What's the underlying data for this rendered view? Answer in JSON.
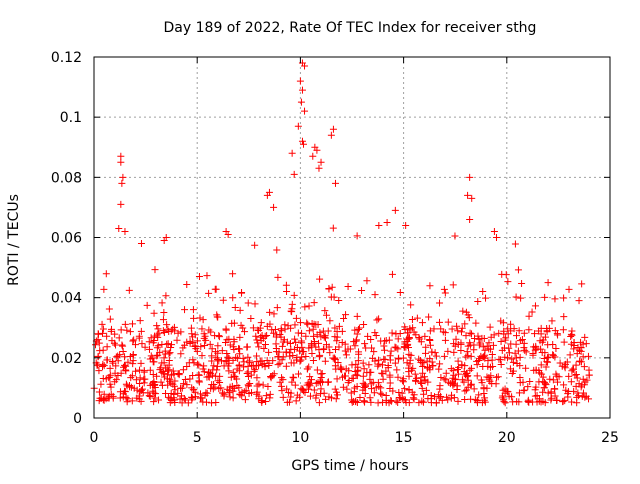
{
  "chart_data": {
    "type": "scatter",
    "title": "Day 189 of 2022, Rate Of TEC Index for receiver sthg",
    "xlabel": "GPS time / hours",
    "ylabel": "ROTI / TECUs",
    "xlim": [
      0,
      25
    ],
    "ylim": [
      0,
      0.12
    ],
    "xticks": [
      0,
      5,
      10,
      15,
      20,
      25
    ],
    "xtick_labels": [
      "0",
      "5",
      "10",
      "15",
      "20",
      "25"
    ],
    "yticks": [
      0,
      0.02,
      0.04,
      0.06,
      0.08,
      0.1,
      0.12
    ],
    "ytick_labels": [
      "0",
      "0.02",
      "0.04",
      "0.06",
      "0.08",
      "0.1",
      "0.12"
    ],
    "grid": true,
    "marker": "+",
    "series": [
      {
        "name": "ROTI",
        "color": "#ff0000",
        "time_range_hours": [
          0,
          24
        ],
        "typical_range": [
          0.005,
          0.03
        ],
        "points": [
          {
            "x": 1.3,
            "y": 0.087
          },
          {
            "x": 1.3,
            "y": 0.085
          },
          {
            "x": 1.4,
            "y": 0.08
          },
          {
            "x": 1.35,
            "y": 0.078
          },
          {
            "x": 1.3,
            "y": 0.071
          },
          {
            "x": 1.2,
            "y": 0.063
          },
          {
            "x": 1.5,
            "y": 0.062
          },
          {
            "x": 3.5,
            "y": 0.06
          },
          {
            "x": 3.4,
            "y": 0.059
          },
          {
            "x": 6.4,
            "y": 0.062
          },
          {
            "x": 6.5,
            "y": 0.061
          },
          {
            "x": 8.5,
            "y": 0.075
          },
          {
            "x": 8.4,
            "y": 0.074
          },
          {
            "x": 8.7,
            "y": 0.07
          },
          {
            "x": 9.6,
            "y": 0.088
          },
          {
            "x": 9.7,
            "y": 0.081
          },
          {
            "x": 10.1,
            "y": 0.118
          },
          {
            "x": 10.2,
            "y": 0.117
          },
          {
            "x": 10.0,
            "y": 0.112
          },
          {
            "x": 10.1,
            "y": 0.109
          },
          {
            "x": 10.05,
            "y": 0.105
          },
          {
            "x": 10.2,
            "y": 0.102
          },
          {
            "x": 9.9,
            "y": 0.097
          },
          {
            "x": 10.1,
            "y": 0.092
          },
          {
            "x": 10.15,
            "y": 0.091
          },
          {
            "x": 10.7,
            "y": 0.09
          },
          {
            "x": 10.8,
            "y": 0.089
          },
          {
            "x": 10.6,
            "y": 0.087
          },
          {
            "x": 11.0,
            "y": 0.085
          },
          {
            "x": 10.9,
            "y": 0.083
          },
          {
            "x": 11.6,
            "y": 0.096
          },
          {
            "x": 11.5,
            "y": 0.094
          },
          {
            "x": 11.7,
            "y": 0.078
          },
          {
            "x": 13.8,
            "y": 0.064
          },
          {
            "x": 14.2,
            "y": 0.065
          },
          {
            "x": 14.6,
            "y": 0.069
          },
          {
            "x": 15.1,
            "y": 0.064
          },
          {
            "x": 18.2,
            "y": 0.08
          },
          {
            "x": 18.1,
            "y": 0.074
          },
          {
            "x": 18.3,
            "y": 0.073
          },
          {
            "x": 18.2,
            "y": 0.066
          },
          {
            "x": 19.4,
            "y": 0.062
          },
          {
            "x": 19.5,
            "y": 0.06
          },
          {
            "x": 22.0,
            "y": 0.045
          },
          {
            "x": 23.5,
            "y": 0.039
          }
        ]
      }
    ]
  }
}
